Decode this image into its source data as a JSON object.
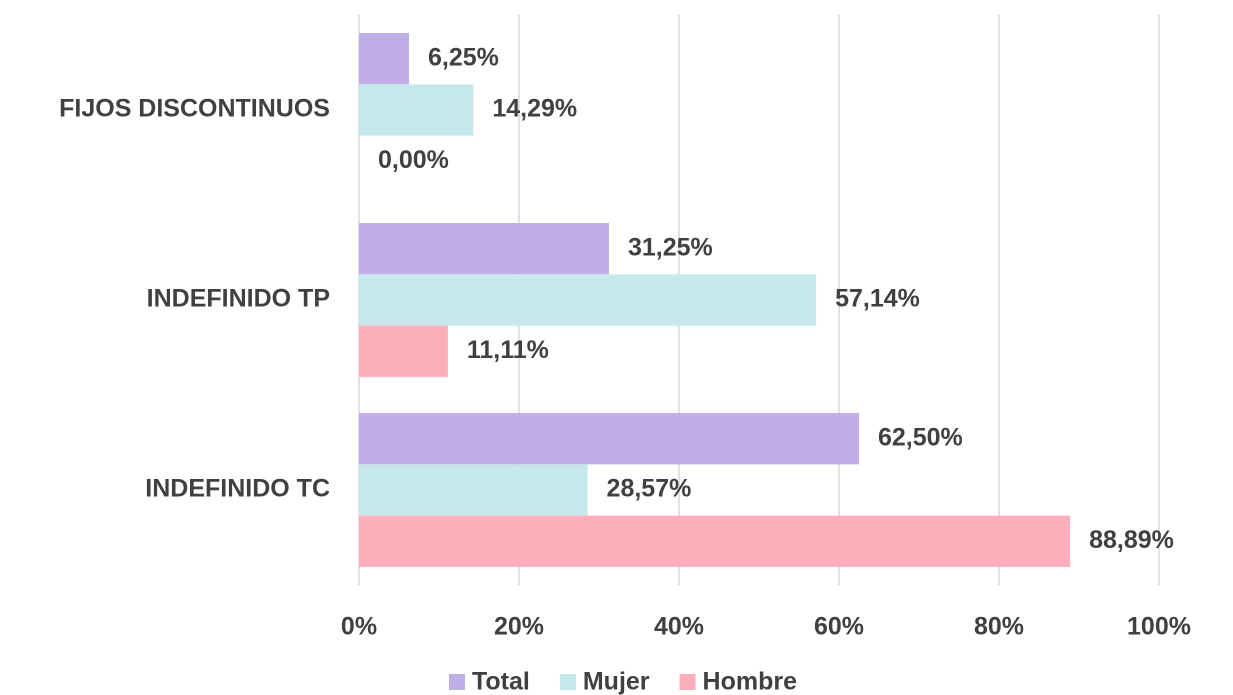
{
  "chart_data": {
    "type": "hbar",
    "categories": [
      "FIJOS DISCONTINUOS",
      "INDEFINIDO TP",
      "INDEFINIDO TC"
    ],
    "series": [
      {
        "name": "Total",
        "color": "#c0aee6",
        "values": [
          6.25,
          31.25,
          62.5
        ],
        "value_labels": [
          "6,25%",
          "31,25%",
          "62,50%"
        ]
      },
      {
        "name": "Mujer",
        "color": "#c5e8ea",
        "values": [
          14.29,
          57.14,
          28.57
        ],
        "value_labels": [
          "14,29%",
          "57,14%",
          "28,57%"
        ]
      },
      {
        "name": "Hombre",
        "color": "#fcaeba",
        "values": [
          0,
          11.11,
          88.89
        ],
        "value_labels": [
          "0,00%",
          "11,11%",
          "88,89%"
        ]
      }
    ],
    "xlim": [
      0,
      100
    ],
    "xticks": [
      {
        "value": 0,
        "label": "0%"
      },
      {
        "value": 20,
        "label": "20%"
      },
      {
        "value": 40,
        "label": "40%"
      },
      {
        "value": 60,
        "label": "60%"
      },
      {
        "value": 80,
        "label": "80%"
      },
      {
        "value": 100,
        "label": "100%"
      }
    ],
    "grid": true,
    "legend": "bottom"
  }
}
